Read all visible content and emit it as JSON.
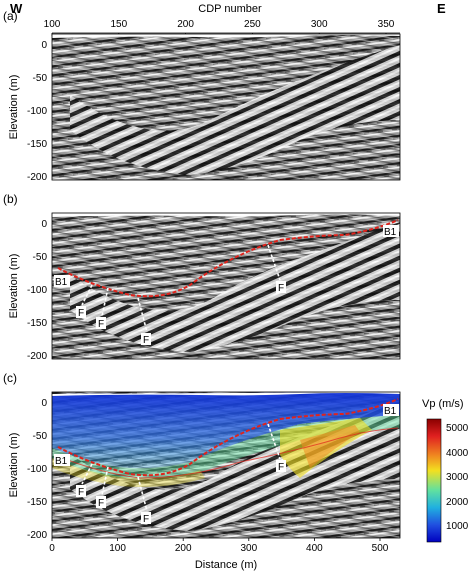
{
  "top_axis": {
    "title": "CDP number",
    "west_label": "W",
    "east_label": "E",
    "ticks": [
      "100",
      "150",
      "200",
      "250",
      "300",
      "350"
    ]
  },
  "panels": [
    {
      "label": "(a)",
      "ylabel": "Elevation (m)",
      "yticks": [
        "0",
        "-50",
        "-100",
        "-150",
        "-200"
      ]
    },
    {
      "label": "(b)",
      "ylabel": "Elevation (m)",
      "yticks": [
        "0",
        "-50",
        "-100",
        "-150",
        "-200"
      ],
      "annotations": {
        "horizon": "B1",
        "fault": "F"
      }
    },
    {
      "label": "(c)",
      "ylabel": "Elevation (m)",
      "yticks": [
        "0",
        "-50",
        "-100",
        "-150",
        "-200"
      ],
      "annotations": {
        "horizon": "B1",
        "fault": "F"
      }
    }
  ],
  "bottom_axis": {
    "title": "Distance (m)",
    "ticks": [
      "0",
      "100",
      "200",
      "300",
      "400",
      "500"
    ]
  },
  "colorbar": {
    "title": "Vp (m/s)",
    "ticks": [
      "5000",
      "4000",
      "3000",
      "2000",
      "1000"
    ],
    "colors": [
      "#8b0000",
      "#e02020",
      "#f08a20",
      "#f2e020",
      "#60e0a0",
      "#20b0e0",
      "#2050e0",
      "#0000c0"
    ]
  },
  "colors": {
    "interpreted_horizon": "#e0231c",
    "fault_line": "#ffffff",
    "seismic_dark": "#1a1a1a",
    "seismic_light": "#f2f2f2"
  }
}
